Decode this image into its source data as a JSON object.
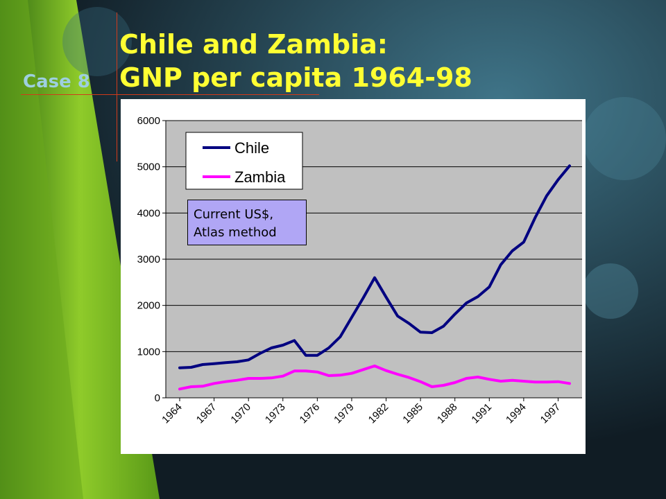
{
  "case_label": "Case 8",
  "title_line1": "Chile and Zambia:",
  "title_line2": "GNP per capita 1964-98",
  "colors": {
    "title": "#ffff33",
    "case": "#9ecfe0",
    "chile": "#000080",
    "zambia": "#ff00ff",
    "plot_bg": "#c0c0c0",
    "note_bg": "#b0a6f5"
  },
  "chart_data": {
    "type": "line",
    "title": "",
    "xlabel": "",
    "ylabel": "",
    "ylim": [
      0,
      6000
    ],
    "y_ticks": [
      0,
      1000,
      2000,
      3000,
      4000,
      5000,
      6000
    ],
    "grid": "horizontal",
    "legend_position": "top-left",
    "x": [
      1964,
      1965,
      1966,
      1967,
      1968,
      1969,
      1970,
      1971,
      1972,
      1973,
      1974,
      1975,
      1976,
      1977,
      1978,
      1979,
      1980,
      1981,
      1982,
      1983,
      1984,
      1985,
      1986,
      1987,
      1988,
      1989,
      1990,
      1991,
      1992,
      1993,
      1994,
      1995,
      1996,
      1997,
      1998
    ],
    "x_tick_labels": [
      "1964",
      "1967",
      "1970",
      "1973",
      "1976",
      "1979",
      "1982",
      "1985",
      "1988",
      "1991",
      "1994",
      "1997"
    ],
    "series": [
      {
        "name": "Chile",
        "color": "#000080",
        "values": [
          650,
          660,
          720,
          740,
          760,
          780,
          820,
          960,
          1080,
          1140,
          1240,
          920,
          920,
          1080,
          1320,
          1740,
          2160,
          2600,
          2180,
          1770,
          1610,
          1420,
          1410,
          1550,
          1810,
          2050,
          2190,
          2400,
          2880,
          3180,
          3370,
          3900,
          4370,
          4720,
          5020
        ]
      },
      {
        "name": "Zambia",
        "color": "#ff00ff",
        "values": [
          190,
          240,
          250,
          310,
          350,
          380,
          420,
          420,
          430,
          470,
          580,
          580,
          560,
          480,
          490,
          530,
          610,
          690,
          590,
          510,
          440,
          350,
          240,
          270,
          330,
          420,
          450,
          400,
          360,
          380,
          360,
          340,
          340,
          350,
          310
        ]
      }
    ]
  },
  "note": {
    "line1": "Current US$,",
    "line2": "Atlas method"
  }
}
